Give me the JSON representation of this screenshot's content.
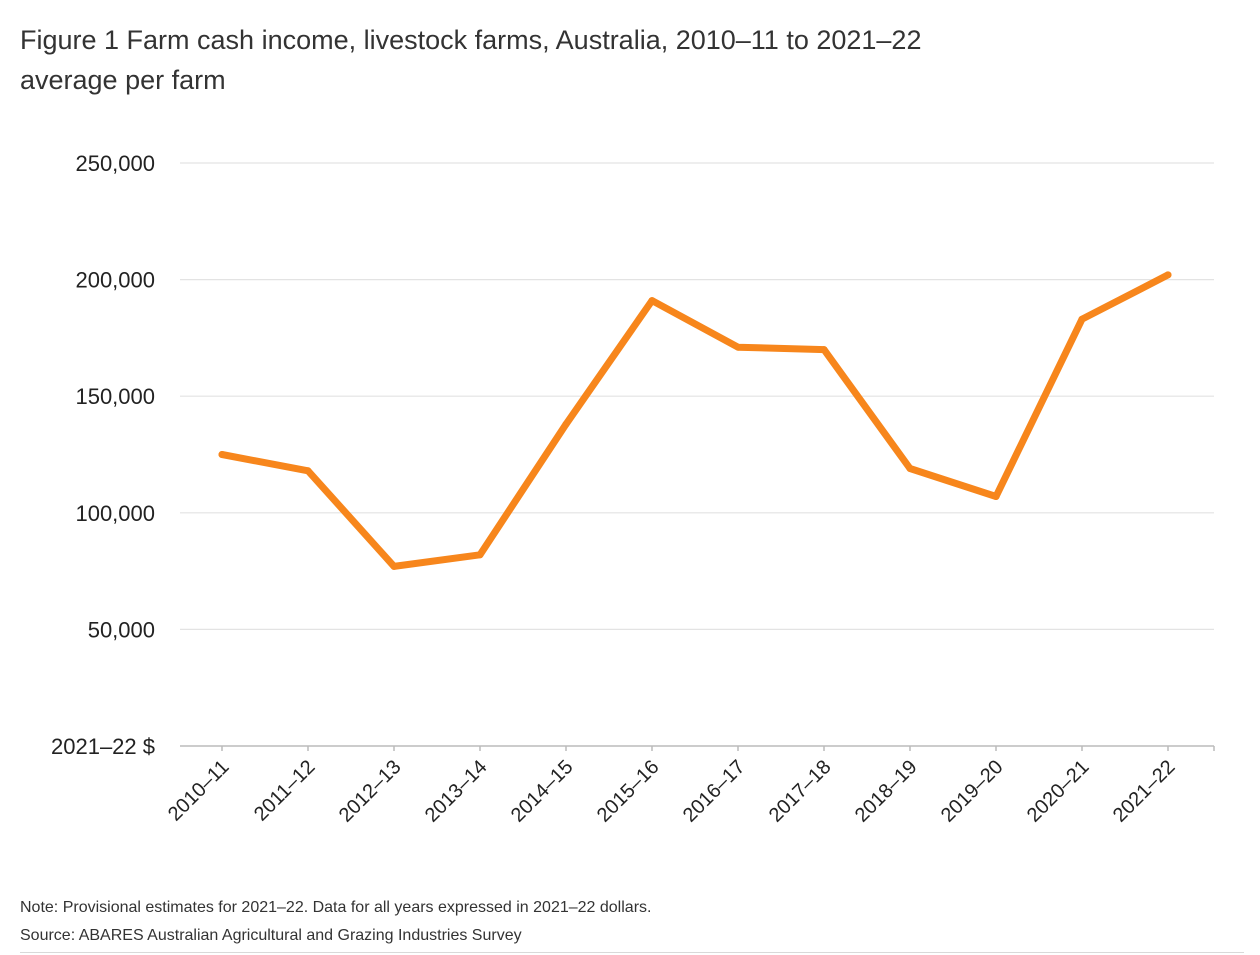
{
  "title": {
    "line1": "Figure 1 Farm cash income, livestock farms, Australia, 2010–11 to 2021–22",
    "line2": "average per farm"
  },
  "chart_data": {
    "type": "line",
    "categories": [
      "2010–11",
      "2011–12",
      "2012–13",
      "2013–14",
      "2014–15",
      "2015–16",
      "2016–17",
      "2017–18",
      "2018–19",
      "2019–20",
      "2020–21",
      "2021–22"
    ],
    "series": [
      {
        "values": [
          125000,
          118000,
          77000,
          82000,
          138000,
          191000,
          171000,
          170000,
          119000,
          107000,
          183000,
          202000
        ],
        "color": "#F7861C"
      }
    ],
    "ylabel": "2021–22 $",
    "yticks": [
      "250,000",
      "200,000",
      "150,000",
      "100,000",
      "50,000"
    ],
    "yticks_values": [
      250000,
      200000,
      150000,
      100000,
      50000
    ],
    "ylim": [
      0,
      250000
    ],
    "grid": true,
    "gridColor": "#e3e3e3",
    "axisColor": "#bbbbbb"
  },
  "notes": {
    "note": "Note: Provisional estimates for 2021–22. Data for all years expressed in 2021–22 dollars.",
    "source": "Source: ABARES Australian Agricultural and Grazing Industries Survey"
  }
}
